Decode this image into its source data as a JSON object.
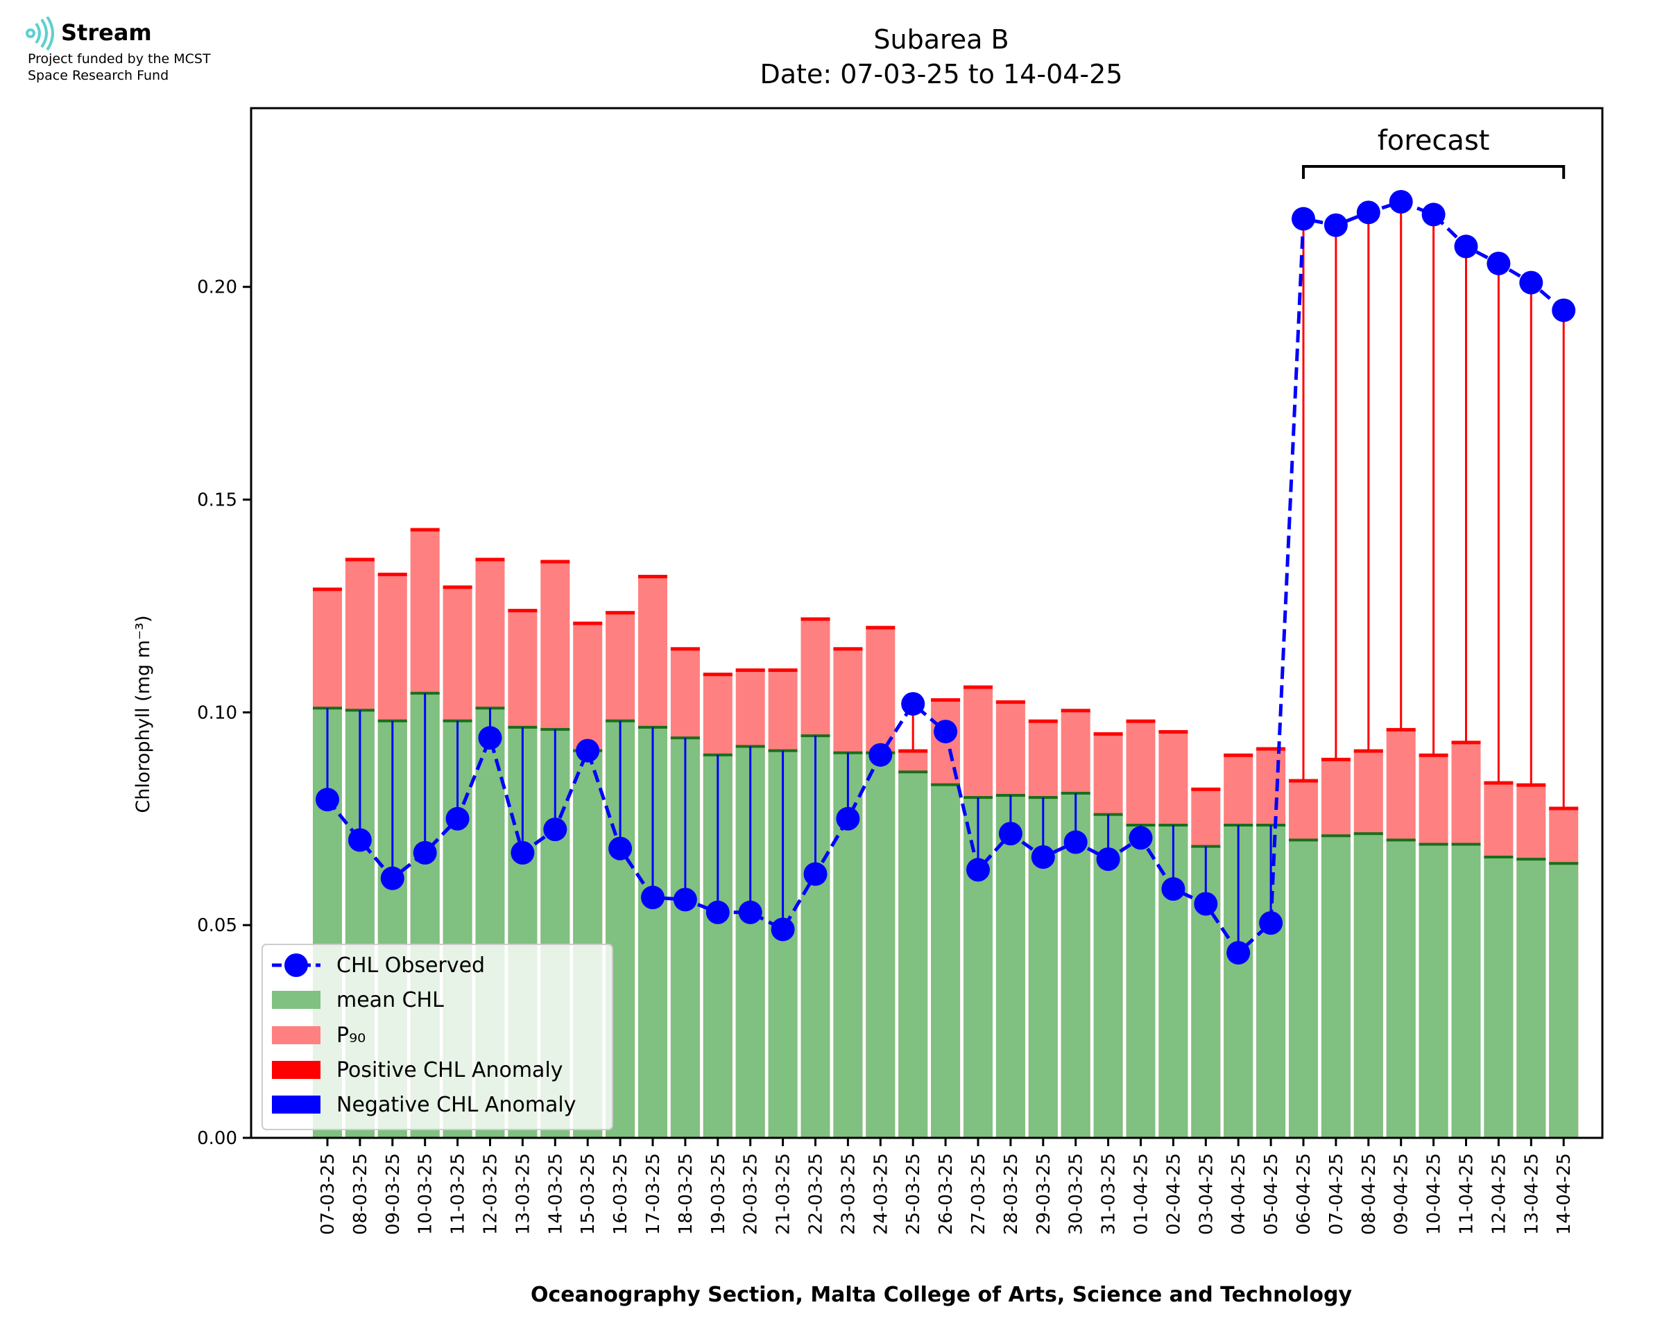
{
  "logo": {
    "icon": "stream-waves-icon",
    "brand": "Stream",
    "line1": "Project funded by the MCST",
    "line2": "Space Research Fund"
  },
  "chart_data": {
    "type": "bar",
    "title": "Subarea B",
    "subtitle": "Date: 07-03-25 to 14-04-25",
    "xlabel": "Oceanography Section, Malta College of Arts, Science and Technology",
    "ylabel": "Chlorophyll (mg m⁻³)",
    "ylim": [
      0,
      0.242
    ],
    "yticks": [
      "0.00",
      "0.05",
      "0.10",
      "0.15",
      "0.20"
    ],
    "grid": false,
    "legend_position": "lower-left",
    "annotation": "forecast",
    "forecast_start": "06-04-25",
    "forecast_end": "14-04-25",
    "colors": {
      "observed": "#0000ff",
      "mean": "#80c080",
      "mean_edge": "#1a6e1a",
      "p90": "#ff8080",
      "positive_anomaly": "#ff0000",
      "negative_anomaly": "#0000ff"
    },
    "categories": [
      "07-03-25",
      "08-03-25",
      "09-03-25",
      "10-03-25",
      "11-03-25",
      "12-03-25",
      "13-03-25",
      "14-03-25",
      "15-03-25",
      "16-03-25",
      "17-03-25",
      "18-03-25",
      "19-03-25",
      "20-03-25",
      "21-03-25",
      "22-03-25",
      "23-03-25",
      "24-03-25",
      "25-03-25",
      "26-03-25",
      "27-03-25",
      "28-03-25",
      "29-03-25",
      "30-03-25",
      "31-03-25",
      "01-04-25",
      "02-04-25",
      "03-04-25",
      "04-04-25",
      "05-04-25",
      "06-04-25",
      "07-04-25",
      "08-04-25",
      "09-04-25",
      "10-04-25",
      "11-04-25",
      "12-04-25",
      "13-04-25",
      "14-04-25"
    ],
    "series": [
      {
        "name": "CHL Observed",
        "values": [
          0.0795,
          0.07,
          0.061,
          0.067,
          0.075,
          0.094,
          0.067,
          0.0725,
          0.091,
          0.068,
          0.0565,
          0.056,
          0.053,
          0.053,
          0.049,
          0.062,
          0.075,
          0.09,
          0.102,
          0.0955,
          0.063,
          0.0715,
          0.066,
          0.0695,
          0.0655,
          0.0705,
          0.0585,
          0.055,
          0.0435,
          0.0505,
          0.216,
          0.2145,
          0.2175,
          0.22,
          0.217,
          0.2095,
          0.2055,
          0.201,
          0.1945
        ]
      },
      {
        "name": "mean CHL",
        "values": [
          0.101,
          0.1005,
          0.098,
          0.1045,
          0.098,
          0.101,
          0.0965,
          0.096,
          0.091,
          0.098,
          0.0965,
          0.094,
          0.09,
          0.092,
          0.091,
          0.0945,
          0.0905,
          0.0905,
          0.086,
          0.083,
          0.08,
          0.0805,
          0.08,
          0.081,
          0.076,
          0.0735,
          0.0735,
          0.0685,
          0.0735,
          0.0735,
          0.07,
          0.071,
          0.0715,
          0.07,
          0.069,
          0.069,
          0.066,
          0.0655,
          0.0645
        ]
      },
      {
        "name": "P₉₀",
        "values": [
          0.129,
          0.136,
          0.1325,
          0.143,
          0.1295,
          0.136,
          0.124,
          0.1355,
          0.121,
          0.1235,
          0.132,
          0.115,
          0.109,
          0.11,
          0.11,
          0.122,
          0.115,
          0.12,
          0.091,
          0.103,
          0.106,
          0.1025,
          0.098,
          0.1005,
          0.095,
          0.098,
          0.0955,
          0.082,
          0.09,
          0.0915,
          0.084,
          0.089,
          0.091,
          0.096,
          0.09,
          0.093,
          0.0835,
          0.083,
          0.0775
        ]
      }
    ],
    "legend": [
      "CHL Observed",
      "mean CHL",
      "P₉₀",
      "Positive CHL Anomaly",
      "Negative CHL Anomaly"
    ]
  }
}
